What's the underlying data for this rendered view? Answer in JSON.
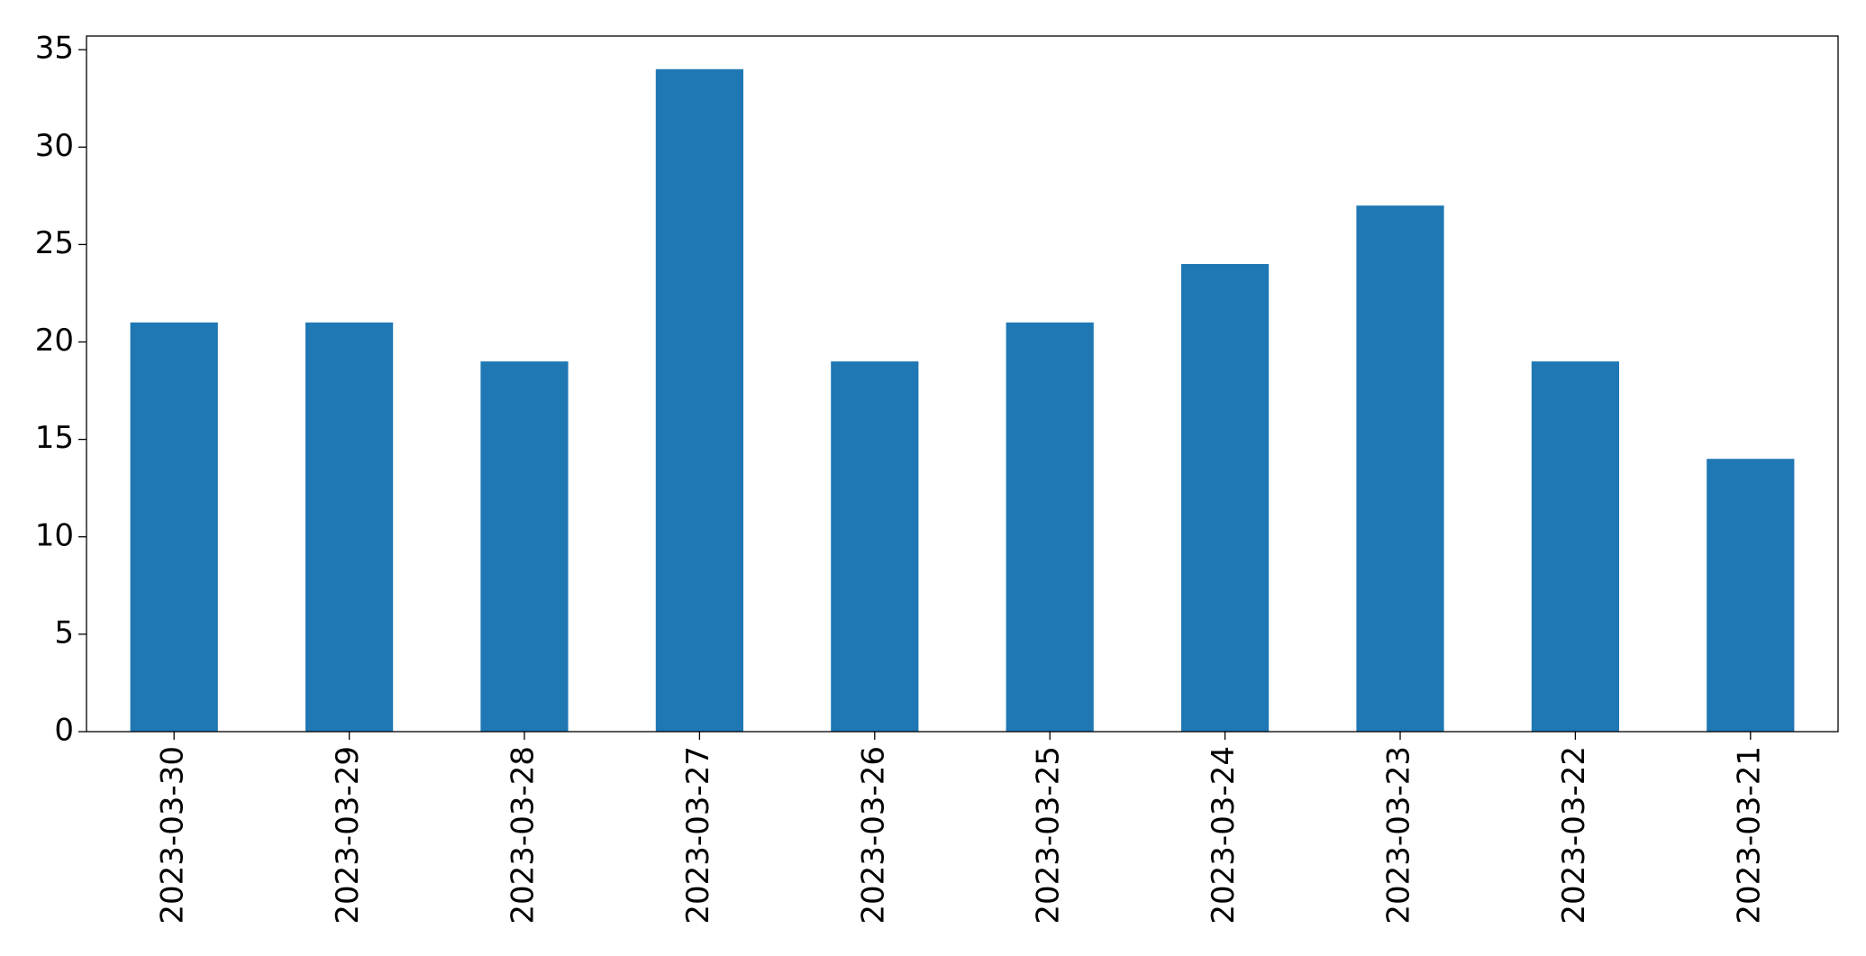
{
  "chart_data": {
    "type": "bar",
    "categories": [
      "2023-03-30",
      "2023-03-29",
      "2023-03-28",
      "2023-03-27",
      "2023-03-26",
      "2023-03-25",
      "2023-03-24",
      "2023-03-23",
      "2023-03-22",
      "2023-03-21"
    ],
    "values": [
      21,
      21,
      19,
      34,
      19,
      21,
      24,
      27,
      19,
      14
    ],
    "color": "#1f77b4",
    "ylim": [
      0,
      35.7
    ],
    "yticks": [
      0,
      5,
      10,
      15,
      20,
      25,
      30,
      35
    ],
    "grid": false
  }
}
